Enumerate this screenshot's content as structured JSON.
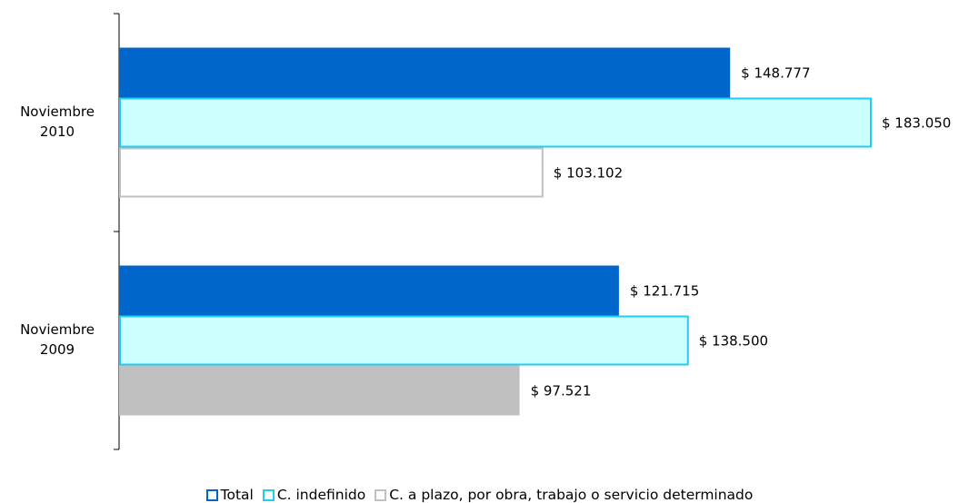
{
  "chart_data": {
    "type": "bar",
    "orientation": "horizontal",
    "categories": [
      "Noviembre 2010",
      "Noviembre 2009"
    ],
    "series": [
      {
        "name": "Total",
        "color": "#0066cc",
        "fills": [
          "#0066cc",
          "#0066cc"
        ],
        "values": [
          148777,
          121715
        ],
        "value_labels": [
          "$ 148.777",
          "$ 121.715"
        ]
      },
      {
        "name": "C. indefinido",
        "color": "#22ccee",
        "fills": [
          "#ccffff",
          "#ccffff"
        ],
        "values": [
          183050,
          138500
        ],
        "value_labels": [
          "$ 183.050",
          "$ 138.500"
        ]
      },
      {
        "name": "C. a plazo, por obra, trabajo o servicio determinado",
        "color": "#c0c0c0",
        "fills": [
          "#ffffff",
          "#c0c0c0"
        ],
        "values": [
          103102,
          97521
        ],
        "value_labels": [
          "$ 103.102",
          "$ 97.521"
        ]
      }
    ],
    "legend": "bottom"
  }
}
